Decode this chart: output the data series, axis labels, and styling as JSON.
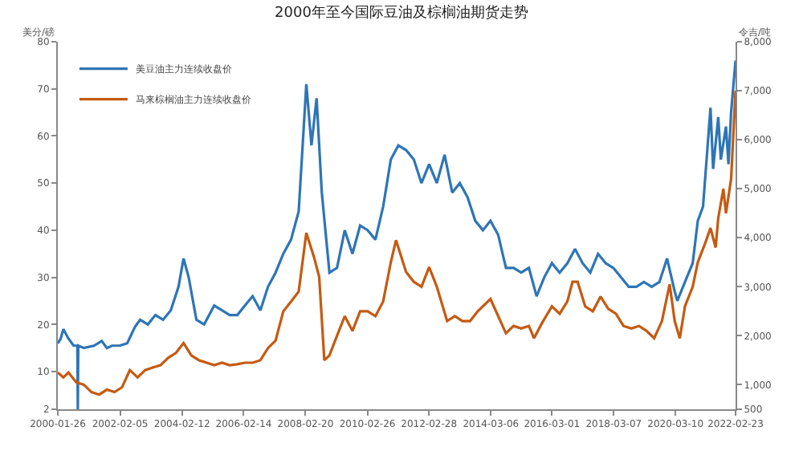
{
  "chart_data": {
    "type": "line",
    "title": "2000年至今国际豆油及棕榈油期货走势",
    "ylabel": "美分/磅",
    "y2label": "令吉/吨",
    "xlim": [
      "2000-01-26",
      "2022-02-23"
    ],
    "xticks": [
      "2000-01-26",
      "2002-02-05",
      "2004-02-12",
      "2006-02-14",
      "2008-02-20",
      "2010-02-26",
      "2012-02-28",
      "2014-03-06",
      "2016-03-01",
      "2018-03-07",
      "2020-03-10",
      "2022-02-23"
    ],
    "ylim": [
      2,
      80
    ],
    "yticks": [
      2,
      10,
      20,
      30,
      40,
      50,
      60,
      70,
      80
    ],
    "y2lim": [
      500,
      8000
    ],
    "y2ticks": [
      {
        "value": 500,
        "label": "500"
      },
      {
        "value": 1000,
        "label": "1,000"
      },
      {
        "value": 2000,
        "label": "2,000"
      },
      {
        "value": 3000,
        "label": "3,000"
      },
      {
        "value": 4000,
        "label": "4,000"
      },
      {
        "value": 5000,
        "label": "5,000"
      },
      {
        "value": 6000,
        "label": "6,000"
      },
      {
        "value": 7000,
        "label": "7,000"
      },
      {
        "value": 8000,
        "label": "8,000"
      }
    ],
    "legend": "top left",
    "marker": "none",
    "line_style": "solid",
    "series": [
      {
        "name": "美豆油主力连续收盘价",
        "color": "#2e75b6",
        "x": [
          "2000-01-26",
          "2000-03",
          "2000-04",
          "2000-06",
          "2000-08",
          "2000-09-15",
          "2000-09-20",
          "2000-09-25",
          "2000-12",
          "2001-04",
          "2001-07",
          "2001-09",
          "2001-11",
          "2002-02",
          "2002-05",
          "2002-08",
          "2002-10",
          "2003-01",
          "2003-04",
          "2003-07",
          "2003-10",
          "2004-01",
          "2004-03",
          "2004-05",
          "2004-08",
          "2004-11",
          "2005-03",
          "2005-06",
          "2005-09",
          "2005-12",
          "2006-03",
          "2006-06",
          "2006-09",
          "2006-12",
          "2007-03",
          "2007-06",
          "2007-09",
          "2007-12",
          "2008-03",
          "2008-05",
          "2008-07",
          "2008-09",
          "2008-12",
          "2009-03",
          "2009-06",
          "2009-09",
          "2009-12",
          "2010-03",
          "2010-06",
          "2010-09",
          "2010-12",
          "2011-03",
          "2011-06",
          "2011-09",
          "2011-12",
          "2012-03",
          "2012-06",
          "2012-09",
          "2012-12",
          "2013-03",
          "2013-06",
          "2013-09",
          "2013-12",
          "2014-03",
          "2014-06",
          "2014-09",
          "2014-12",
          "2015-03",
          "2015-06",
          "2015-09",
          "2015-12",
          "2016-03",
          "2016-06",
          "2016-09",
          "2016-12",
          "2017-03",
          "2017-06",
          "2017-09",
          "2017-12",
          "2018-03",
          "2018-06",
          "2018-09",
          "2018-12",
          "2019-03",
          "2019-06",
          "2019-09",
          "2019-12",
          "2020-03",
          "2020-04",
          "2020-07",
          "2020-10",
          "2020-12",
          "2021-02",
          "2021-05",
          "2021-06",
          "2021-08",
          "2021-09",
          "2021-11",
          "2021-12",
          "2022-01",
          "2022-02-23"
        ],
        "values": [
          16,
          17,
          19,
          17,
          15.5,
          15.5,
          2,
          15.5,
          15,
          15.5,
          16.5,
          15,
          15.5,
          15.5,
          16,
          19.5,
          21,
          20,
          22,
          21,
          23,
          28,
          34,
          30,
          21,
          20,
          24,
          23,
          22,
          22,
          24,
          26,
          23,
          28,
          31,
          35,
          38,
          44,
          71,
          58,
          68,
          48,
          31,
          32,
          40,
          35,
          41,
          40,
          38,
          45,
          55,
          58,
          57,
          55,
          50,
          54,
          50,
          56,
          48,
          50,
          47,
          42,
          40,
          42,
          39,
          32,
          32,
          31,
          32,
          26,
          30,
          33,
          31,
          33,
          36,
          33,
          31,
          35,
          33,
          32,
          30,
          28,
          28,
          29,
          28,
          29,
          34,
          27,
          25,
          29,
          33,
          42,
          45,
          66,
          53,
          64,
          55,
          62,
          54,
          65,
          76
        ]
      },
      {
        "name": "马来棕榈油主力连续收盘价",
        "color": "#c55a11",
        "axis": "y2",
        "x": [
          "2000-01-26",
          "2000-04",
          "2000-06",
          "2000-09",
          "2000-12",
          "2001-03",
          "2001-06",
          "2001-09",
          "2001-12",
          "2002-03",
          "2002-06",
          "2002-09",
          "2002-12",
          "2003-03",
          "2003-06",
          "2003-09",
          "2003-12",
          "2004-03",
          "2004-06",
          "2004-09",
          "2004-12",
          "2005-03",
          "2005-06",
          "2005-09",
          "2005-12",
          "2006-03",
          "2006-06",
          "2006-09",
          "2006-12",
          "2007-03",
          "2007-06",
          "2007-09",
          "2007-12",
          "2008-03",
          "2008-06",
          "2008-08",
          "2008-10",
          "2008-12",
          "2009-03",
          "2009-06",
          "2009-09",
          "2009-12",
          "2010-03",
          "2010-06",
          "2010-09",
          "2010-12",
          "2011-02",
          "2011-06",
          "2011-09",
          "2011-12",
          "2012-03",
          "2012-06",
          "2012-10",
          "2013-01",
          "2013-04",
          "2013-07",
          "2013-10",
          "2014-03",
          "2014-06",
          "2014-09",
          "2014-12",
          "2015-03",
          "2015-06",
          "2015-08",
          "2015-11",
          "2016-03",
          "2016-06",
          "2016-09",
          "2016-11",
          "2017-01",
          "2017-04",
          "2017-07",
          "2017-10",
          "2018-01",
          "2018-04",
          "2018-07",
          "2018-10",
          "2019-01",
          "2019-04",
          "2019-07",
          "2019-10",
          "2020-01",
          "2020-03",
          "2020-05",
          "2020-07",
          "2020-10",
          "2020-12",
          "2021-03",
          "2021-05",
          "2021-07",
          "2021-08",
          "2021-10",
          "2021-11",
          "2022-01",
          "2022-02-23"
        ],
        "values": [
          1250,
          1150,
          1250,
          1050,
          1000,
          850,
          800,
          900,
          850,
          950,
          1300,
          1150,
          1300,
          1350,
          1400,
          1550,
          1650,
          1850,
          1600,
          1500,
          1450,
          1400,
          1450,
          1400,
          1420,
          1450,
          1450,
          1500,
          1750,
          1900,
          2500,
          2700,
          2900,
          4100,
          3600,
          3200,
          1500,
          1600,
          2000,
          2400,
          2100,
          2500,
          2500,
          2400,
          2700,
          3500,
          3950,
          3300,
          3100,
          3000,
          3400,
          3000,
          2300,
          2400,
          2300,
          2300,
          2500,
          2750,
          2400,
          2050,
          2200,
          2150,
          2200,
          1950,
          2250,
          2600,
          2450,
          2700,
          3100,
          3100,
          2600,
          2500,
          2800,
          2550,
          2450,
          2200,
          2150,
          2200,
          2100,
          1950,
          2300,
          3050,
          2300,
          1950,
          2600,
          3000,
          3500,
          3900,
          4200,
          3800,
          4400,
          5000,
          4500,
          5200,
          7000
        ]
      }
    ]
  }
}
